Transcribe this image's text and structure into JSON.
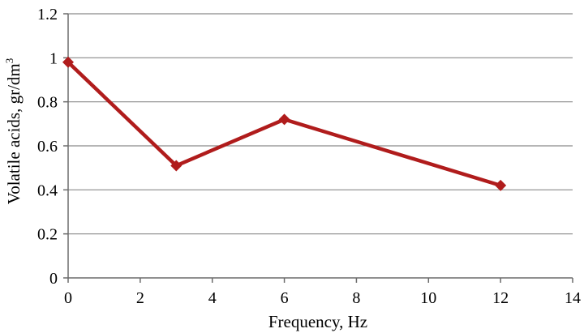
{
  "chart_data": {
    "type": "line",
    "title": "",
    "xlabel": "Frequency, Hz",
    "ylabel_main": "Volatile acids, gr/dm",
    "ylabel_sup": "3",
    "xlim": [
      0,
      14
    ],
    "ylim": [
      0,
      1.2
    ],
    "x_ticks": [
      "0",
      "2",
      "4",
      "6",
      "8",
      "10",
      "12",
      "14"
    ],
    "y_ticks": [
      "0",
      "0.2",
      "0.4",
      "0.6",
      "0.8",
      "1",
      "1.2"
    ],
    "grid": "horizontal",
    "legend": "none",
    "series": [
      {
        "color": "#b01c1c",
        "marker": "diamond",
        "x": [
          0,
          3,
          6,
          12
        ],
        "y": [
          0.98,
          0.51,
          0.72,
          0.42
        ]
      }
    ]
  }
}
